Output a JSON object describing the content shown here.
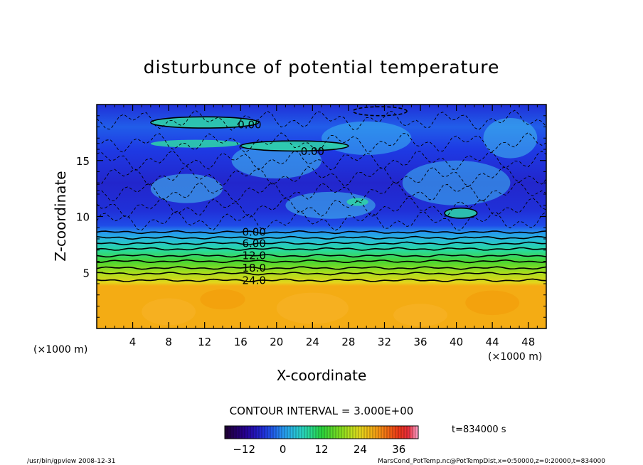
{
  "chart_data": {
    "type": "heatmap",
    "title": "disturbunce of potential temperature",
    "xlabel": "X-coordinate",
    "ylabel": "Z-coordinate",
    "x_unit": "(×1000 m)",
    "y_unit": "(×1000 m)",
    "xlim": [
      0,
      50
    ],
    "ylim": [
      0,
      20
    ],
    "x_ticks": [
      "4",
      "8",
      "12",
      "16",
      "20",
      "24",
      "28",
      "32",
      "36",
      "40",
      "44",
      "48"
    ],
    "y_ticks": [
      "5",
      "10",
      "15"
    ],
    "contour_interval": "CONTOUR INTERVAL = 3.000E+00",
    "contour_labels": [
      {
        "text": "0.00",
        "x": 17,
        "z": 18.2
      },
      {
        "text": "0.00",
        "x": 24,
        "z": 15.8
      },
      {
        "text": "0.00",
        "x": 17.5,
        "z": 8.6
      },
      {
        "text": "6.00",
        "x": 17.5,
        "z": 7.6
      },
      {
        "text": "12.0",
        "x": 17.5,
        "z": 6.5
      },
      {
        "text": "18.0",
        "x": 17.5,
        "z": 5.4
      },
      {
        "text": "24.0",
        "x": 17.5,
        "z": 4.3
      }
    ],
    "profile": [
      {
        "z": 0,
        "value": 28
      },
      {
        "z": 3.8,
        "value": 28
      },
      {
        "z": 4.1,
        "value": 24
      },
      {
        "z": 5.0,
        "value": 20
      },
      {
        "z": 6.0,
        "value": 14
      },
      {
        "z": 7.0,
        "value": 8
      },
      {
        "z": 8.0,
        "value": 3
      },
      {
        "z": 8.6,
        "value": 0
      },
      {
        "z": 9.2,
        "value": -4
      },
      {
        "z": 10.5,
        "value": -6
      },
      {
        "z": 13,
        "value": -7
      },
      {
        "z": 16,
        "value": -5
      },
      {
        "z": 18,
        "value": -3
      },
      {
        "z": 20,
        "value": -6
      }
    ],
    "colorbar": {
      "min": -18,
      "max": 42,
      "ticks": [
        "-12",
        "0",
        "12",
        "24",
        "36"
      ],
      "tick_values": [
        -12,
        0,
        12,
        24,
        36
      ]
    },
    "time_label": "t=834000 s",
    "colors": {
      "orange": "#F5A00A",
      "cyan": "#2FB4EE",
      "green": "#24D24A",
      "yellow": "#D8E020"
    }
  },
  "footer": {
    "left": "/usr/bin/gpview   2008-12-31",
    "right": "MarsCond_PotTemp.nc@PotTempDist,x=0:50000,z=0:20000,t=834000"
  }
}
